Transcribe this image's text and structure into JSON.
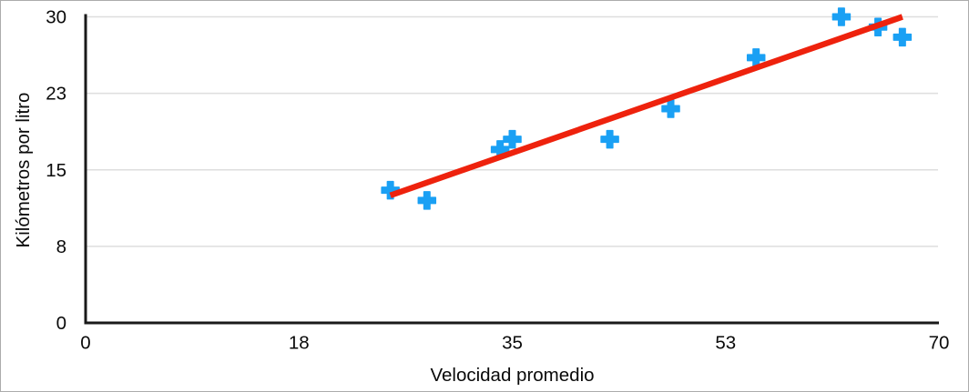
{
  "figure": {
    "background": "#ffffff",
    "border_color": "#acacac"
  },
  "chart_data": {
    "type": "scatter",
    "title": "",
    "xlabel": "Velocidad promedio",
    "ylabel": "Kilómetros por litro",
    "xlim": [
      0,
      70
    ],
    "ylim": [
      0,
      30
    ],
    "grid": "horizontal",
    "legend": "none",
    "x_ticks": [
      {
        "label": "0",
        "value": 0
      },
      {
        "label": "18",
        "value": 17.5
      },
      {
        "label": "35",
        "value": 35
      },
      {
        "label": "53",
        "value": 52.5
      },
      {
        "label": "70",
        "value": 70
      }
    ],
    "y_ticks": [
      {
        "label": "0",
        "value": 0
      },
      {
        "label": "8",
        "value": 7.5
      },
      {
        "label": "15",
        "value": 15
      },
      {
        "label": "23",
        "value": 22.5
      },
      {
        "label": "30",
        "value": 30
      }
    ],
    "series": [
      {
        "name": "data-points",
        "type": "scatter",
        "marker": "plus",
        "color": "#1aa0f4",
        "points": [
          [
            25,
            13
          ],
          [
            28,
            12
          ],
          [
            34,
            17
          ],
          [
            35,
            18
          ],
          [
            43,
            18
          ],
          [
            48,
            21
          ],
          [
            55,
            26
          ],
          [
            62,
            30
          ],
          [
            65,
            29
          ],
          [
            67,
            28
          ]
        ]
      },
      {
        "name": "trend-line",
        "type": "trendline",
        "color": "#ee220d",
        "points": [
          [
            25,
            12.5
          ],
          [
            67,
            30
          ]
        ]
      }
    ],
    "colors": {
      "axis": "#1a1a1a",
      "gridline": "#dedede",
      "tick_text": "#0a0a0a"
    }
  }
}
